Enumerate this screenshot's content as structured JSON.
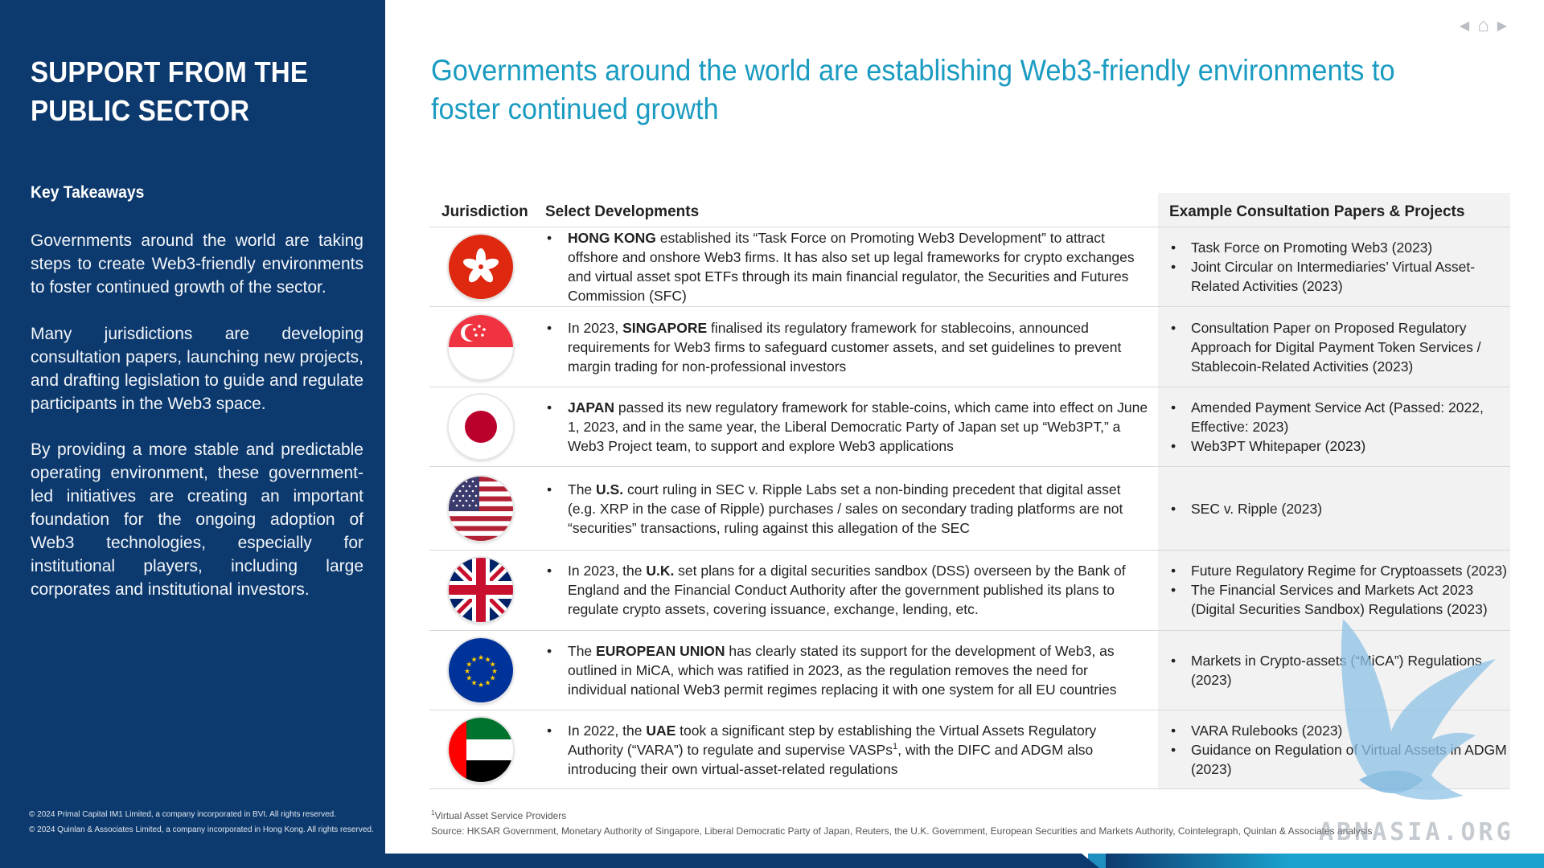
{
  "sidebar": {
    "title_line1": "SUPPORT FROM THE",
    "title_line2": "PUBLIC SECTOR",
    "subtitle": "Key Takeaways",
    "para1": "Governments around the world are taking steps to create Web3-friendly environments to foster continued growth of the sector.",
    "para2": "Many jurisdictions are developing consultation papers, launching new projects, and drafting legislation to guide and regulate participants in the Web3 space.",
    "para3": "By providing a more stable and predictable operating environment, these government-led initiatives are creating an important foundation for the ongoing adoption of Web3 technologies, especially for institutional players, including large corporates and institutional investors.",
    "copyright1": "© 2024 Primal Capital IM1 Limited, a company incorporated in BVI. All rights reserved.",
    "copyright2": "© 2024 Quinlan & Associates Limited, a company incorporated in Hong Kong. All rights reserved."
  },
  "nav": {
    "prev_icon": "triangle-left-icon",
    "home_icon": "home-icon",
    "next_icon": "triangle-right-icon"
  },
  "heading": "Governments around the world are establishing Web3-friendly environments to foster continued growth",
  "table": {
    "headers": {
      "jurisdiction": "Jurisdiction",
      "developments": "Select Developments",
      "examples": "Example Consultation Papers & Projects"
    },
    "rows": [
      {
        "flag": "hong-kong-flag",
        "pre": "",
        "name": "HONG KONG",
        "post": " established its “Task Force on Promoting Web3 Development” to attract offshore and onshore Web3 firms. It has also set up legal frameworks for crypto exchanges and virtual asset spot ETFs through its main financial regulator, the Securities and Futures Commission (SFC)",
        "examples": [
          "Task Force on Promoting Web3 (2023)",
          "Joint Circular on Intermediaries’ Virtual Asset-Related Activities (2023)"
        ]
      },
      {
        "flag": "singapore-flag",
        "pre": "In 2023, ",
        "name": "SINGAPORE",
        "post": " finalised its regulatory framework for stablecoins, announced requirements for Web3 firms to safeguard customer assets, and set guidelines to prevent margin trading for non-professional investors",
        "examples": [
          "Consultation Paper on Proposed Regulatory Approach for Digital Payment Token Services / Stablecoin-Related Activities (2023)"
        ]
      },
      {
        "flag": "japan-flag",
        "pre": "",
        "name": "JAPAN",
        "post": " passed its new regulatory framework for stable-coins, which came into effect on June 1, 2023, and in the same year, the Liberal Democratic Party of Japan set up “Web3PT,” a Web3 Project team, to support and explore Web3 applications",
        "examples": [
          "Amended Payment Service Act (Passed: 2022, Effective: 2023)",
          "Web3PT Whitepaper (2023)"
        ]
      },
      {
        "flag": "united-states-flag",
        "pre": "The ",
        "name": "U.S.",
        "post": " court ruling in SEC v. Ripple Labs set a non-binding precedent that digital asset (e.g. XRP in the case of Ripple) purchases / sales on secondary trading platforms are not “securities” transactions, ruling against this allegation of the SEC",
        "examples": [
          "SEC v. Ripple (2023)"
        ]
      },
      {
        "flag": "united-kingdom-flag",
        "pre": "In 2023, the ",
        "name": "U.K.",
        "post": " set plans for a digital securities sandbox (DSS) overseen by the Bank of England and the Financial Conduct Authority after the government published its plans to regulate crypto assets, covering issuance, exchange, lending, etc.",
        "examples": [
          "Future Regulatory Regime for Cryptoassets (2023)",
          "The Financial Services and Markets Act 2023 (Digital Securities Sandbox) Regulations (2023)"
        ]
      },
      {
        "flag": "european-union-flag",
        "pre": "The ",
        "name": "EUROPEAN UNION",
        "post": " has clearly stated its support for the development of Web3, as outlined in MiCA, which was ratified in 2023, as the regulation removes the need for individual national Web3 permit regimes replacing it with one system for all EU countries",
        "examples": [
          "Markets in Crypto-assets (“MiCA”) Regulations (2023)"
        ]
      },
      {
        "flag": "uae-flag",
        "pre": "In 2022, the ",
        "name": "UAE",
        "post_a": " took a significant step by establishing the Virtual Assets Regulatory Authority (“VARA”) to regulate and supervise VASPs",
        "sup": "1",
        "post_b": ", with the DIFC and ADGM also introducing their own virtual-asset-related regulations",
        "examples": [
          "VARA Rulebooks (2023)",
          "Guidance on Regulation of Virtual Assets in ADGM (2023)"
        ]
      }
    ]
  },
  "footnotes": {
    "note_sup": "1",
    "note_text": "Virtual Asset Service Providers",
    "source": "Source: HKSAR Government, Monetary Authority of Singapore, Liberal Democratic Party of Japan, Reuters, the U.K. Government, European Securities and Markets Authority, Cointelegraph, Quinlan & Associates analysis"
  },
  "watermark": {
    "text": "ABNASIA.ORG"
  }
}
